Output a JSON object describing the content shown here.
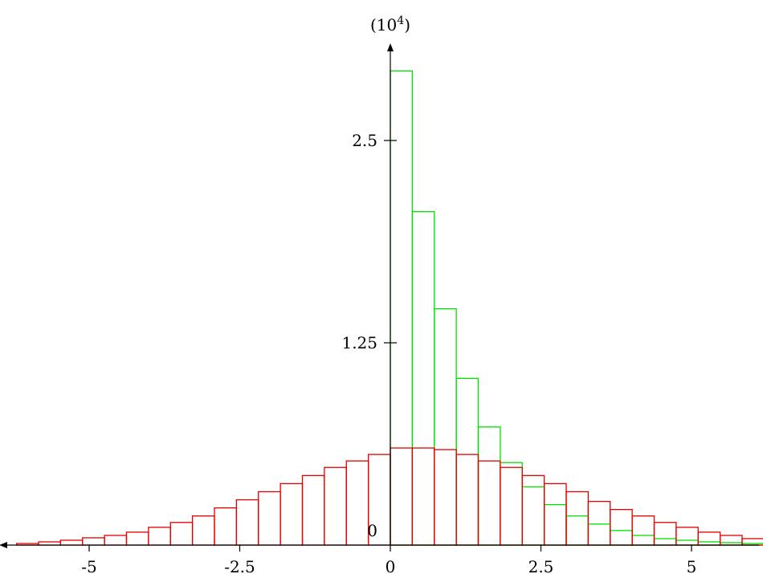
{
  "chart_data": {
    "type": "bar",
    "title": "",
    "xlabel": "",
    "ylabel": "",
    "y_unit_label": "(10",
    "y_unit_exponent": "4",
    "y_unit_close": ")",
    "xlim": [
      -6.2,
      6.0
    ],
    "ylim": [
      0,
      3.0
    ],
    "grid": false,
    "legend": "none",
    "x_ticks": [
      {
        "value": -5,
        "label": "-5"
      },
      {
        "value": -2.5,
        "label": "-2.5"
      },
      {
        "value": 0,
        "label": "0"
      },
      {
        "value": 2.5,
        "label": "2.5"
      },
      {
        "value": 5,
        "label": "5"
      }
    ],
    "y_ticks": [
      {
        "value": 0,
        "label": "0"
      },
      {
        "value": 1.25,
        "label": "1.25"
      },
      {
        "value": 2.5,
        "label": "2.5"
      }
    ],
    "series": [
      {
        "color": "#00e000",
        "bin_width": 0.365,
        "bin_starts": [
          0,
          0.365,
          0.73,
          1.095,
          1.46,
          1.825,
          2.19,
          2.555,
          2.92,
          3.285,
          3.65,
          4.015,
          4.38,
          4.745,
          5.11,
          5.475,
          5.84
        ],
        "values": [
          2.93,
          2.06,
          1.46,
          1.03,
          0.73,
          0.51,
          0.36,
          0.25,
          0.18,
          0.13,
          0.09,
          0.06,
          0.04,
          0.03,
          0.02,
          0.015,
          0.01
        ]
      },
      {
        "color": "#e00000",
        "bin_width": 0.365,
        "bin_starts": [
          -6.205,
          -5.84,
          -5.475,
          -5.11,
          -4.745,
          -4.38,
          -4.015,
          -3.65,
          -3.285,
          -2.92,
          -2.555,
          -2.19,
          -1.825,
          -1.46,
          -1.095,
          -0.73,
          -0.365,
          0,
          0.365,
          0.73,
          1.095,
          1.46,
          1.825,
          2.19,
          2.555,
          2.92,
          3.285,
          3.65,
          4.015,
          4.38,
          4.745,
          5.11,
          5.475,
          5.84
        ],
        "values": [
          0.01,
          0.02,
          0.03,
          0.045,
          0.06,
          0.08,
          0.11,
          0.14,
          0.18,
          0.23,
          0.28,
          0.33,
          0.38,
          0.43,
          0.48,
          0.52,
          0.56,
          0.6,
          0.6,
          0.59,
          0.56,
          0.52,
          0.48,
          0.43,
          0.38,
          0.33,
          0.27,
          0.22,
          0.18,
          0.14,
          0.11,
          0.08,
          0.06,
          0.04
        ]
      }
    ]
  }
}
